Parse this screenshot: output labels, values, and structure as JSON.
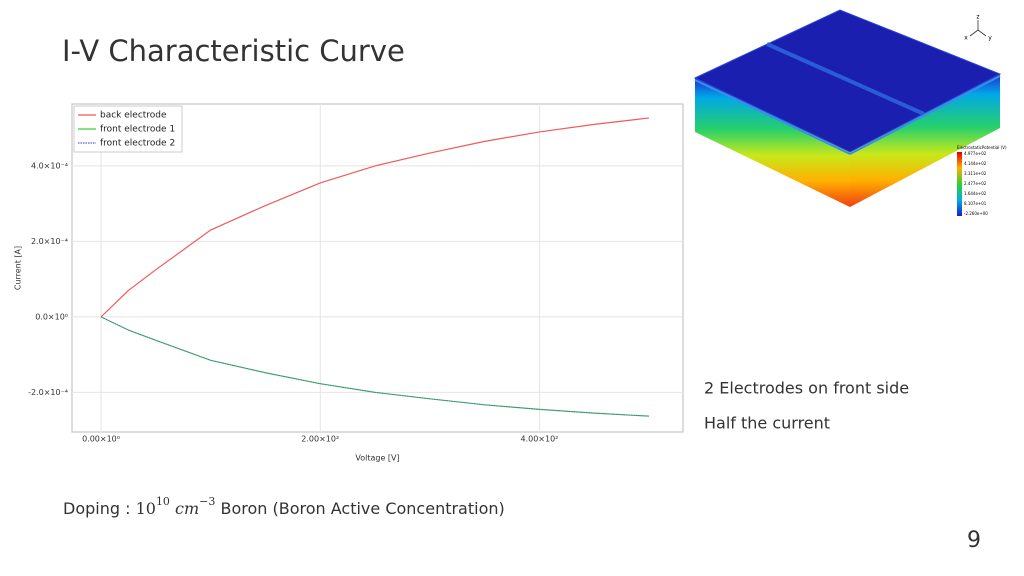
{
  "slide": {
    "title": "I-V Characteristic Curve",
    "notes": [
      "2 Electrodes on front side",
      "Half the current"
    ],
    "doping": {
      "label": "Doping :",
      "base": "10",
      "base_exp": "10",
      "unit": "cm",
      "unit_exp": "−3",
      "rest": "Boron (Boron Active Concentration)"
    },
    "page_number": "9"
  },
  "figure_3d": {
    "colorbar_title": "ElectrostaticPotential (V)",
    "colorbar_labels": [
      "4.977e+02",
      "4.144e+02",
      "3.311e+02",
      "2.477e+02",
      "1.644e+02",
      "8.107e+01",
      "-2.260e+00"
    ],
    "axes": [
      "z",
      "x",
      "y"
    ]
  },
  "chart_data": {
    "type": "line",
    "xlabel": "Voltage [V]",
    "ylabel": "Current [A]",
    "x": [
      0,
      25,
      50,
      100,
      150,
      200,
      250,
      300,
      350,
      400,
      450,
      500
    ],
    "series": [
      {
        "name": "back electrode",
        "color": "#f05a5a",
        "values": [
          0,
          7e-05,
          0.000125,
          0.00023,
          0.000295,
          0.000355,
          0.0004,
          0.000434,
          0.000465,
          0.00049,
          0.00051,
          0.000527
        ]
      },
      {
        "name": "front electrode 1",
        "color": "#3fcf3f",
        "values": [
          0,
          -3.5e-05,
          -6.2e-05,
          -0.000115,
          -0.000148,
          -0.000177,
          -0.0002,
          -0.000217,
          -0.000233,
          -0.000245,
          -0.000255,
          -0.000263
        ]
      },
      {
        "name": "front electrode 2",
        "color": "#5b5bd6",
        "dashed": true,
        "values": [
          0,
          -3.5e-05,
          -6.2e-05,
          -0.000115,
          -0.000148,
          -0.000177,
          -0.0002,
          -0.000217,
          -0.000233,
          -0.000245,
          -0.000255,
          -0.000263
        ]
      }
    ],
    "xlim": [
      -26.5,
      531
    ],
    "ylim": [
      -0.000305,
      0.000564
    ],
    "xticks": [
      {
        "value": 0,
        "label": "0.00×10⁰"
      },
      {
        "value": 200,
        "label": "2.00×10²"
      },
      {
        "value": 400,
        "label": "4.00×10²"
      }
    ],
    "yticks": [
      {
        "value": 0.0004,
        "label": "4.0×10⁻⁴"
      },
      {
        "value": 0.0002,
        "label": "2.0×10⁻⁴"
      },
      {
        "value": 0,
        "label": "0.0×10⁰"
      },
      {
        "value": -0.0002,
        "label": "-2.0×10⁻⁴"
      }
    ],
    "grid": true,
    "legend": "upper left"
  }
}
